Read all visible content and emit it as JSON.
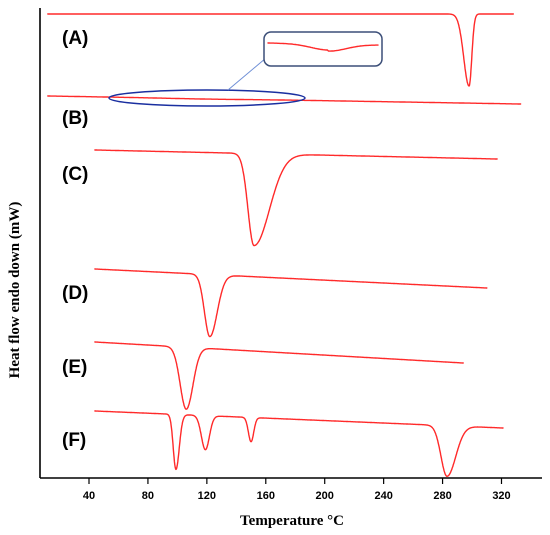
{
  "chart_data": {
    "type": "line",
    "title": "",
    "xlabel": "Temperature °C",
    "ylabel": "Heat flow endo down (mW)",
    "xlim": [
      12,
      333
    ],
    "x_ticks": [
      40,
      80,
      120,
      160,
      200,
      240,
      280,
      320
    ],
    "y_ticks": [],
    "grid": false,
    "legend": "none",
    "inset": {
      "description": "magnified view of curve (B)",
      "series": "B"
    },
    "colors": {
      "trace": "#ff2a2a",
      "inset_border": "#3b4e78",
      "zoom_ellipse": "#1a2fa0",
      "axes": "#000000"
    },
    "series": [
      {
        "name": "(A)",
        "x_range": [
          12,
          328
        ],
        "events": [
          {
            "type": "endotherm",
            "peak_x": 298,
            "onset_x": 290,
            "end_x": 302,
            "depth": 1.0
          }
        ]
      },
      {
        "name": "(B)",
        "x_range": [
          12,
          333
        ],
        "events": [
          {
            "type": "endotherm",
            "peak_x": 120,
            "onset_x": 55,
            "end_x": 175,
            "depth": 0.08
          }
        ]
      },
      {
        "name": "(C)",
        "x_range": [
          44,
          317
        ],
        "events": [
          {
            "type": "endotherm",
            "peak_x": 152,
            "onset_x": 143,
            "end_x": 175,
            "depth": 1.0
          }
        ]
      },
      {
        "name": "(D)",
        "x_range": [
          44,
          310
        ],
        "events": [
          {
            "type": "endotherm",
            "peak_x": 122,
            "onset_x": 114,
            "end_x": 133,
            "depth": 1.0
          }
        ]
      },
      {
        "name": "(E)",
        "x_range": [
          44,
          294
        ],
        "events": [
          {
            "type": "endotherm",
            "peak_x": 106,
            "onset_x": 97,
            "end_x": 116,
            "depth": 1.0
          }
        ]
      },
      {
        "name": "(F)",
        "x_range": [
          44,
          321
        ],
        "events": [
          {
            "type": "endotherm",
            "peak_x": 99,
            "onset_x": 95,
            "end_x": 104,
            "depth": 1.0
          },
          {
            "type": "endotherm",
            "peak_x": 119,
            "onset_x": 113,
            "end_x": 125,
            "depth": 0.62
          },
          {
            "type": "endotherm",
            "peak_x": 150,
            "onset_x": 146,
            "end_x": 154,
            "depth": 0.44
          },
          {
            "type": "endotherm",
            "peak_x": 283,
            "onset_x": 274,
            "end_x": 296,
            "depth": 0.92
          }
        ]
      }
    ]
  }
}
